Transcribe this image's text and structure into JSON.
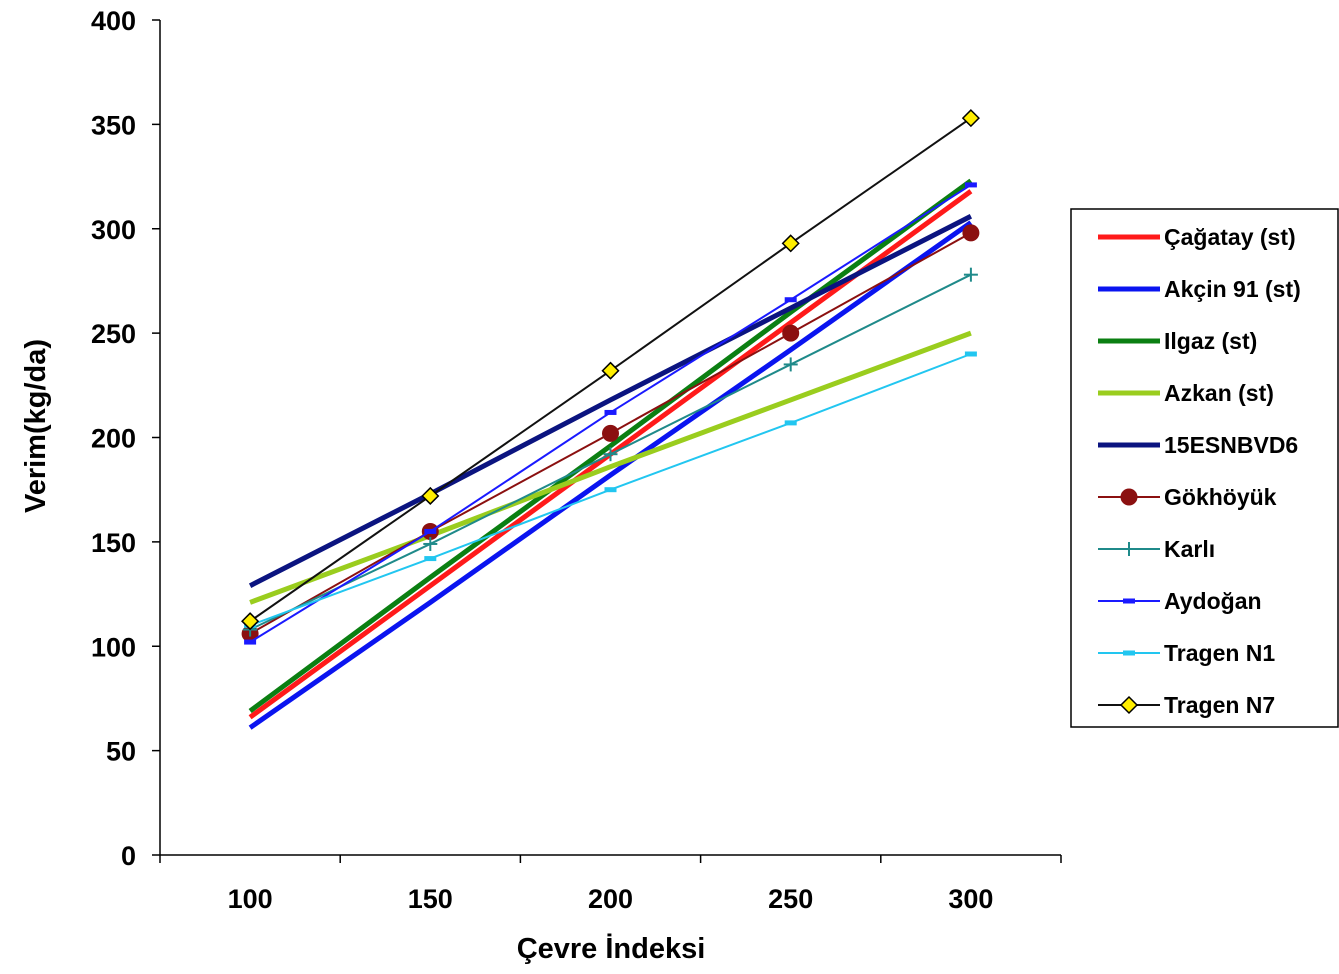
{
  "chart_data": {
    "type": "line",
    "xlabel": "Çevre İndeksi",
    "ylabel": "Verim(kg/da)",
    "xlim": [
      75,
      325
    ],
    "ylim": [
      0,
      400
    ],
    "x_ticks": [
      100,
      150,
      200,
      250,
      300
    ],
    "y_ticks": [
      0,
      50,
      100,
      150,
      200,
      250,
      300,
      350,
      400
    ],
    "grid": false,
    "legend_position": "right",
    "x": [
      100,
      150,
      200,
      250,
      300
    ],
    "series": [
      {
        "name": "Çağatay (st)",
        "color": "#ff1a1a",
        "width": 5,
        "marker": "none",
        "values": [
          66,
          129,
          192,
          255,
          318
        ]
      },
      {
        "name": "Akçin 91 (st)",
        "color": "#0a14f0",
        "width": 5,
        "marker": "none",
        "values": [
          61,
          121,
          182,
          242,
          303
        ]
      },
      {
        "name": "Ilgaz (st)",
        "color": "#0b7f12",
        "width": 5,
        "marker": "none",
        "values": [
          69,
          133,
          196,
          260,
          323
        ]
      },
      {
        "name": "Azkan (st)",
        "color": "#9acd1e",
        "width": 5,
        "marker": "none",
        "values": [
          121,
          153,
          186,
          218,
          250
        ]
      },
      {
        "name": "15ESNBVD6",
        "color": "#0b1480",
        "width": 5,
        "marker": "none",
        "values": [
          129,
          173,
          218,
          262,
          306
        ]
      },
      {
        "name": "Gökhöyük",
        "color": "#8b1010",
        "width": 2,
        "marker": "circle",
        "values": [
          106,
          155,
          202,
          250,
          298
        ]
      },
      {
        "name": "Karlı",
        "color": "#1f8a8a",
        "width": 2,
        "marker": "plus",
        "values": [
          108,
          149,
          192,
          235,
          278
        ]
      },
      {
        "name": "Aydoğan",
        "color": "#1a1aff",
        "width": 2,
        "marker": "dash",
        "values": [
          102,
          155,
          212,
          266,
          321
        ]
      },
      {
        "name": "Tragen N1",
        "color": "#22c6f0",
        "width": 2,
        "marker": "dash",
        "values": [
          110,
          142,
          175,
          207,
          240
        ]
      },
      {
        "name": "Tragen N7",
        "color": "#111111",
        "width": 2,
        "marker": "diamond",
        "values": [
          112,
          172,
          232,
          293,
          353
        ]
      }
    ]
  }
}
